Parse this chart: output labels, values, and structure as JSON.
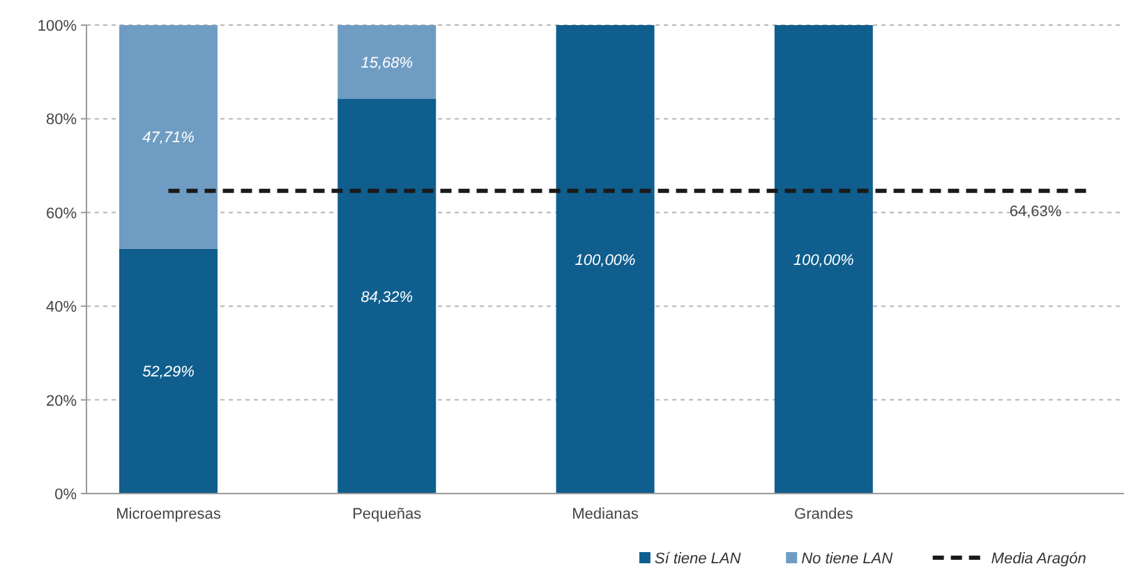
{
  "chart_data": {
    "type": "bar",
    "stacked": true,
    "categories": [
      "Microempresas",
      "Pequeñas",
      "Medianas",
      "Grandes"
    ],
    "series": [
      {
        "name": "Sí tiene LAN",
        "color": "#0f5e8e",
        "values": [
          52.29,
          84.32,
          100,
          100
        ],
        "value_labels": [
          "52,29%",
          "84,32%",
          "100,00%",
          "100,00%"
        ]
      },
      {
        "name": "No tiene LAN",
        "color": "#6f9cc2",
        "values": [
          47.71,
          15.68,
          0,
          0
        ],
        "value_labels": [
          "47,71%",
          "15,68%",
          null,
          null
        ]
      }
    ],
    "ylim": [
      0,
      100
    ],
    "yticks": [
      {
        "value": 0,
        "label": "0%"
      },
      {
        "value": 20,
        "label": "20%"
      },
      {
        "value": 40,
        "label": "40%"
      },
      {
        "value": 60,
        "label": "60%"
      },
      {
        "value": 80,
        "label": "80%"
      },
      {
        "value": 100,
        "label": "100%"
      }
    ],
    "grid": "y",
    "ref_lines": [
      {
        "axis": "y",
        "value": 64.63,
        "label": "Media Aragón",
        "color": "#1a1a1a",
        "line_style": "dashed"
      }
    ],
    "annotations": [
      {
        "text": "64,63%",
        "y": 64.63
      }
    ],
    "legend": "bottom right"
  }
}
